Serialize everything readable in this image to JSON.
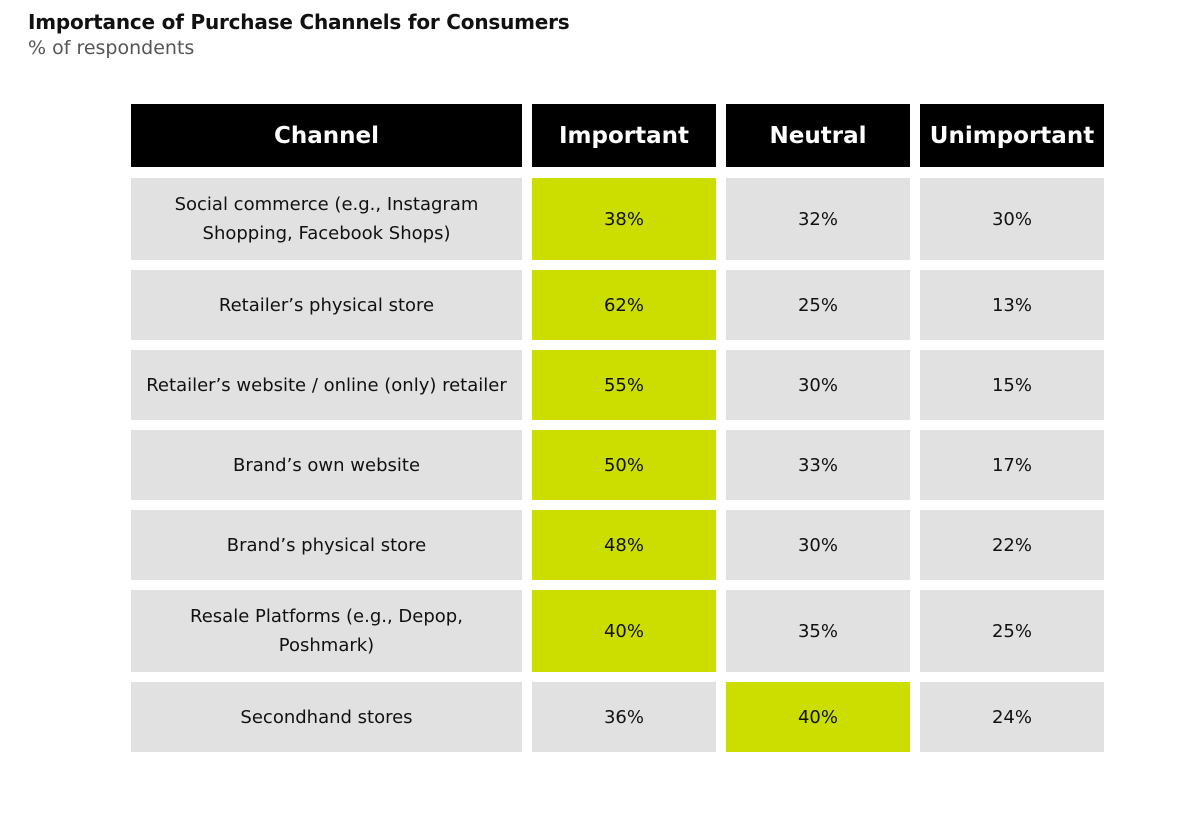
{
  "chart_data": {
    "type": "table",
    "title": "Importance of Purchase Channels for Consumers",
    "subtitle": "% of respondents",
    "columns": [
      "Channel",
      "Important",
      "Neutral",
      "Unimportant"
    ],
    "highlight_color": "#ccdd00",
    "header_color": "#000000",
    "cell_color": "#e1e1e1",
    "rows": [
      {
        "channel": "Social commerce (e.g., Instagram Shopping, Facebook Shops)",
        "important": "38%",
        "neutral": "32%",
        "unimportant": "30%",
        "highlight": "important"
      },
      {
        "channel": "Retailer’s physical store",
        "important": "62%",
        "neutral": "25%",
        "unimportant": "13%",
        "highlight": "important"
      },
      {
        "channel": "Retailer’s website / online (only) retailer",
        "important": "55%",
        "neutral": "30%",
        "unimportant": "15%",
        "highlight": "important"
      },
      {
        "channel": "Brand’s own website",
        "important": "50%",
        "neutral": "33%",
        "unimportant": "17%",
        "highlight": "important"
      },
      {
        "channel": "Brand’s physical store",
        "important": "48%",
        "neutral": "30%",
        "unimportant": "22%",
        "highlight": "important"
      },
      {
        "channel": "Resale Platforms (e.g., Depop, Poshmark)",
        "important": "40%",
        "neutral": "35%",
        "unimportant": "25%",
        "highlight": "important"
      },
      {
        "channel": "Secondhand stores",
        "important": "36%",
        "neutral": "40%",
        "unimportant": "24%",
        "highlight": "neutral"
      }
    ]
  }
}
